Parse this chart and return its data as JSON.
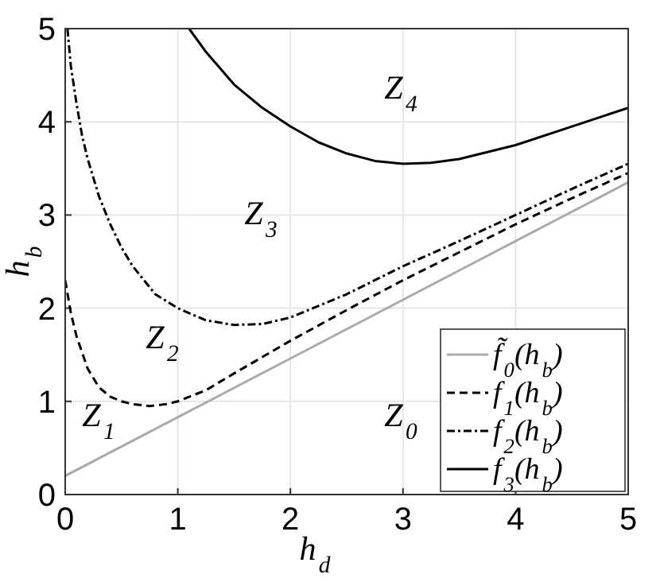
{
  "chart_data": {
    "type": "line",
    "xlabel": "h$_{d}$",
    "ylabel": "h$_{b}$",
    "xlim": [
      0,
      5
    ],
    "ylim": [
      0,
      5
    ],
    "xticks": [
      0,
      1,
      2,
      3,
      4,
      5
    ],
    "yticks": [
      0,
      1,
      2,
      3,
      4,
      5
    ],
    "grid": true,
    "legend": "bottom right",
    "series": [
      {
        "name": "f̃$_{0}$(h$_{b}$)",
        "color": "#aaaaaa",
        "line_style": "solid",
        "x": [
          0,
          5
        ],
        "values": [
          0.2,
          3.35
        ]
      },
      {
        "name": "f$_{1}$(h$_{b}$)",
        "color": "#000000",
        "line_style": "dashed",
        "x": [
          0,
          0.05,
          0.1,
          0.2,
          0.3,
          0.4,
          0.5,
          0.6,
          0.75,
          0.9,
          1,
          1.25,
          1.5,
          2,
          2.5,
          3,
          3.5,
          4,
          4.5,
          5
        ],
        "values": [
          2.3,
          1.95,
          1.7,
          1.35,
          1.15,
          1.05,
          1.0,
          0.97,
          0.95,
          0.97,
          1.0,
          1.12,
          1.3,
          1.65,
          1.98,
          2.3,
          2.6,
          2.9,
          3.18,
          3.45
        ]
      },
      {
        "name": "f$_{2}$(h$_{b}$)",
        "color": "#000000",
        "line_style": "dashdot",
        "x": [
          0.02,
          0.05,
          0.1,
          0.15,
          0.2,
          0.3,
          0.4,
          0.5,
          0.6,
          0.8,
          1,
          1.25,
          1.5,
          1.75,
          2,
          2.5,
          3,
          3.5,
          4,
          4.5,
          5
        ],
        "values": [
          5,
          4.6,
          4.2,
          3.85,
          3.6,
          3.2,
          2.9,
          2.65,
          2.45,
          2.15,
          2.0,
          1.87,
          1.82,
          1.83,
          1.9,
          2.15,
          2.45,
          2.72,
          3.0,
          3.28,
          3.55
        ]
      },
      {
        "name": "f$_{3}$(h$_{b}$)",
        "color": "#000000",
        "line_style": "solid",
        "x": [
          1.1,
          1.25,
          1.5,
          1.75,
          2,
          2.25,
          2.5,
          2.75,
          3,
          3.25,
          3.5,
          4,
          4.5,
          5
        ],
        "values": [
          5,
          4.75,
          4.4,
          4.15,
          3.95,
          3.78,
          3.66,
          3.58,
          3.55,
          3.56,
          3.6,
          3.75,
          3.95,
          4.15
        ]
      }
    ],
    "annotations": [
      "Z$_{1}$",
      "Z$_{2}$",
      "Z$_{3}$",
      "Z$_{4}$",
      "Z$_{0}$"
    ]
  }
}
